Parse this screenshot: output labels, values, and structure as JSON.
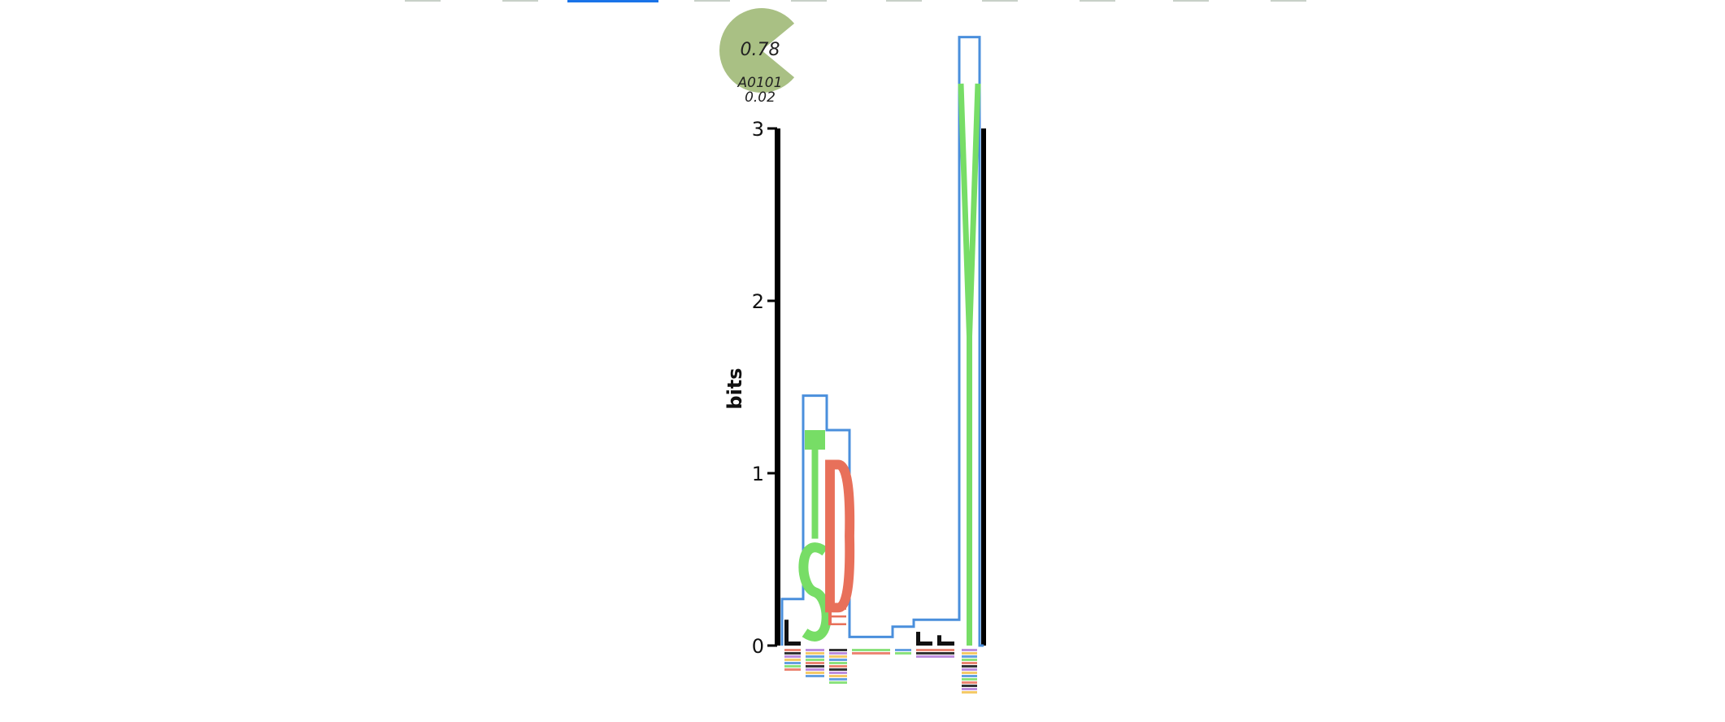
{
  "pie": {
    "value_label": "0.78",
    "name_label": "A0101",
    "sub_label": "0.02",
    "fraction": 0.78,
    "color": "#a9c084"
  },
  "chart_data": {
    "type": "sequence-logo",
    "ylabel": "bits",
    "ylim": [
      0,
      3
    ],
    "yticks": [
      "0",
      "1",
      "2",
      "3"
    ],
    "positions": [
      1,
      2,
      3,
      4,
      5,
      6,
      7,
      8,
      9
    ],
    "column_heights": [
      0.27,
      1.45,
      1.25,
      0.05,
      0.11,
      0.15,
      0.15,
      3.53,
      0.0
    ],
    "letters": [
      {
        "position": 2,
        "letter": "S",
        "start": 0.0,
        "end": 0.62,
        "color": "#77dd66"
      },
      {
        "position": 2,
        "letter": "T",
        "start": 0.62,
        "end": 1.25,
        "color": "#77dd66"
      },
      {
        "position": 3,
        "letter": "E",
        "start": 0.12,
        "end": 0.22,
        "color": "#e8705a"
      },
      {
        "position": 3,
        "letter": "D",
        "start": 0.22,
        "end": 1.05,
        "color": "#e8705a"
      },
      {
        "position": 1,
        "letter": "L",
        "start": 0.0,
        "end": 0.15,
        "color": "#111111"
      },
      {
        "position": 6,
        "letter": "L",
        "start": 0.0,
        "end": 0.08,
        "color": "#111111"
      },
      {
        "position": 7,
        "letter": "L",
        "start": 0.0,
        "end": 0.06,
        "color": "#111111"
      },
      {
        "position": 8,
        "letter": "Y",
        "start": 0.0,
        "end": 3.26,
        "color": "#77dd66"
      }
    ],
    "colors": {
      "outline": "#4a8fdc",
      "hydrophobic": "#111111",
      "polar": "#77dd66",
      "acidic": "#e8705a"
    }
  },
  "nav": {
    "tab_count": 10,
    "active_index": 2,
    "active_color": "#1a73e8"
  }
}
